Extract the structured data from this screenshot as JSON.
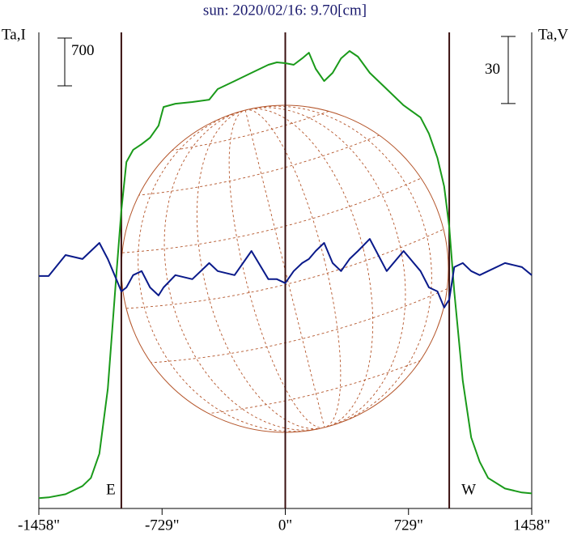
{
  "chart_data": {
    "type": "line",
    "title": "sun: 2020/02/16: 9.70[cm]",
    "y_label": "Ta,I",
    "y2_label": "Ta,V",
    "xlim": [
      -1458,
      1458
    ],
    "xticks": [
      {
        "value": -1458,
        "label": "-1458\""
      },
      {
        "value": -729,
        "label": "-729\""
      },
      {
        "value": 0,
        "label": "0\""
      },
      {
        "value": 729,
        "label": "729\""
      },
      {
        "value": 1458,
        "label": "1458\""
      }
    ],
    "ylim": [
      -150,
      6820
    ],
    "y2lim": [
      -104,
      109
    ],
    "scale_bars": [
      {
        "value": 700,
        "label": "700"
      },
      {
        "value": 30,
        "label": "30",
        "axis": "y2"
      }
    ],
    "vlines": [
      -970,
      0,
      970
    ],
    "annotations": [
      {
        "text": "E",
        "x": -970
      },
      {
        "text": "W",
        "x": 970
      }
    ],
    "x": [
      -1458,
      -1400,
      -1300,
      -1200,
      -1150,
      -1100,
      -1050,
      -1000,
      -970,
      -940,
      -900,
      -850,
      -800,
      -750,
      -720,
      -650,
      -550,
      -450,
      -400,
      -300,
      -200,
      -100,
      -50,
      0,
      50,
      100,
      140,
      180,
      230,
      280,
      330,
      380,
      430,
      500,
      600,
      700,
      800,
      850,
      900,
      940,
      970,
      1000,
      1050,
      1100,
      1150,
      1200,
      1300,
      1400,
      1458
    ],
    "series": [
      {
        "name": "I",
        "color": "#1a9a1a",
        "values": [
          0,
          12,
          59,
          178,
          297,
          652,
          1601,
          3262,
          4210,
          4922,
          5100,
          5183,
          5278,
          5455,
          5728,
          5776,
          5800,
          5835,
          5990,
          6108,
          6227,
          6346,
          6381,
          6369,
          6346,
          6440,
          6523,
          6286,
          6108,
          6227,
          6440,
          6547,
          6464,
          6227,
          5990,
          5752,
          5574,
          5337,
          4981,
          4566,
          3973,
          3024,
          1720,
          890,
          534,
          297,
          142,
          83,
          71
        ]
      },
      {
        "name": "V",
        "color": "#0a1a8a",
        "axis": "y2",
        "values": [
          0,
          0,
          9.4,
          7.6,
          11.2,
          14.8,
          7.6,
          -1.4,
          -6.9,
          -5.1,
          0.4,
          2.2,
          -5.1,
          -8.7,
          -5.1,
          0.4,
          -1.4,
          5.8,
          2.2,
          0.4,
          11.2,
          -1.4,
          -1.4,
          -3.2,
          2.2,
          5.8,
          7.6,
          11.2,
          14.8,
          5.8,
          2.2,
          7.6,
          11.2,
          16.6,
          2.2,
          11.2,
          2.2,
          -5.1,
          -6.9,
          -14.1,
          -10.5,
          4.0,
          5.8,
          2.2,
          0.4,
          2.2,
          5.8,
          4.0,
          0.4
        ]
      }
    ]
  }
}
